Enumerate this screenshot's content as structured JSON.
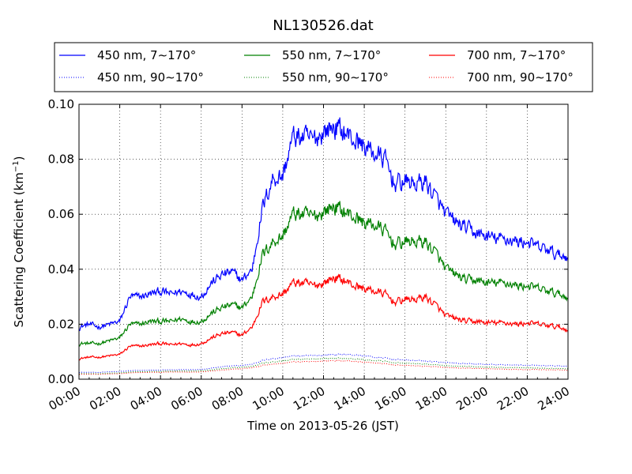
{
  "chart_data": {
    "type": "line",
    "title": "NL130526.dat",
    "xlabel": "Time on 2013-05-26 (JST)",
    "ylabel_main": "Scattering Coefficient (km",
    "ylabel_sup": "−1",
    "ylabel_close": ")",
    "xlim": [
      0,
      24
    ],
    "ylim": [
      0.0,
      0.1
    ],
    "grid": true,
    "legend_position": "top",
    "x_tick_labels": [
      "00:00",
      "02:00",
      "04:00",
      "06:00",
      "08:00",
      "10:00",
      "12:00",
      "14:00",
      "16:00",
      "18:00",
      "20:00",
      "22:00",
      "24:00"
    ],
    "y_tick_labels": [
      "0.00",
      "0.02",
      "0.04",
      "0.06",
      "0.08",
      "0.10"
    ],
    "x_hours": [
      0,
      0.5,
      1,
      1.5,
      2,
      2.5,
      3,
      3.5,
      4,
      4.5,
      5,
      5.5,
      6,
      6.5,
      7,
      7.5,
      8,
      8.5,
      9,
      9.5,
      10,
      10.5,
      11,
      11.5,
      12,
      12.5,
      13,
      13.5,
      14,
      14.5,
      15,
      15.5,
      16,
      16.5,
      17,
      17.5,
      18,
      18.5,
      19,
      19.5,
      20,
      20.5,
      21,
      21.5,
      22,
      22.5,
      23,
      23.5,
      24
    ],
    "series": [
      {
        "name": "450 nm, 7∼170°",
        "color": "#0000ff",
        "style": "solid",
        "values": [
          0.019,
          0.02,
          0.019,
          0.02,
          0.021,
          0.03,
          0.03,
          0.031,
          0.032,
          0.031,
          0.032,
          0.031,
          0.03,
          0.035,
          0.038,
          0.039,
          0.036,
          0.04,
          0.062,
          0.073,
          0.074,
          0.088,
          0.088,
          0.087,
          0.09,
          0.092,
          0.09,
          0.087,
          0.085,
          0.082,
          0.08,
          0.071,
          0.072,
          0.071,
          0.072,
          0.066,
          0.06,
          0.057,
          0.055,
          0.053,
          0.052,
          0.051,
          0.051,
          0.05,
          0.05,
          0.048,
          0.047,
          0.045,
          0.045
        ]
      },
      {
        "name": "450 nm, 90∼170°",
        "color": "#0000ff",
        "style": "dotted",
        "values": [
          0.0025,
          0.0025,
          0.0025,
          0.0027,
          0.0028,
          0.0031,
          0.0032,
          0.0033,
          0.0033,
          0.0034,
          0.0035,
          0.0035,
          0.0036,
          0.004,
          0.0045,
          0.0048,
          0.005,
          0.0055,
          0.0068,
          0.0075,
          0.0078,
          0.0085,
          0.0085,
          0.0086,
          0.0088,
          0.009,
          0.009,
          0.0088,
          0.0085,
          0.008,
          0.0077,
          0.0072,
          0.007,
          0.0068,
          0.0066,
          0.0063,
          0.006,
          0.0058,
          0.0056,
          0.0055,
          0.0054,
          0.0053,
          0.0052,
          0.0052,
          0.0051,
          0.005,
          0.0049,
          0.0048,
          0.0048
        ]
      },
      {
        "name": "550 nm, 7∼170°",
        "color": "#008000",
        "style": "solid",
        "values": [
          0.013,
          0.013,
          0.013,
          0.014,
          0.015,
          0.02,
          0.02,
          0.021,
          0.021,
          0.021,
          0.022,
          0.021,
          0.021,
          0.024,
          0.026,
          0.027,
          0.026,
          0.03,
          0.045,
          0.05,
          0.052,
          0.06,
          0.06,
          0.059,
          0.061,
          0.063,
          0.061,
          0.059,
          0.057,
          0.056,
          0.054,
          0.049,
          0.05,
          0.05,
          0.05,
          0.046,
          0.04,
          0.038,
          0.036,
          0.036,
          0.035,
          0.035,
          0.035,
          0.034,
          0.034,
          0.033,
          0.032,
          0.031,
          0.03
        ]
      },
      {
        "name": "550 nm, 90∼170°",
        "color": "#008000",
        "style": "dotted",
        "values": [
          0.002,
          0.002,
          0.002,
          0.0022,
          0.0023,
          0.0026,
          0.0027,
          0.0028,
          0.0028,
          0.0029,
          0.003,
          0.003,
          0.0031,
          0.0034,
          0.0038,
          0.0041,
          0.0043,
          0.0047,
          0.0058,
          0.0063,
          0.0066,
          0.0072,
          0.0072,
          0.0073,
          0.0075,
          0.0077,
          0.0076,
          0.0074,
          0.0071,
          0.0068,
          0.0065,
          0.006,
          0.0058,
          0.0057,
          0.0055,
          0.0052,
          0.0049,
          0.0047,
          0.0046,
          0.0045,
          0.0044,
          0.0043,
          0.0042,
          0.0042,
          0.0041,
          0.004,
          0.0039,
          0.0039,
          0.0038
        ]
      },
      {
        "name": "700 nm, 7∼170°",
        "color": "#ff0000",
        "style": "solid",
        "values": [
          0.0075,
          0.008,
          0.008,
          0.0085,
          0.009,
          0.012,
          0.012,
          0.0125,
          0.013,
          0.0125,
          0.013,
          0.0125,
          0.013,
          0.015,
          0.0165,
          0.017,
          0.016,
          0.019,
          0.028,
          0.03,
          0.031,
          0.035,
          0.035,
          0.034,
          0.035,
          0.037,
          0.036,
          0.034,
          0.033,
          0.032,
          0.031,
          0.028,
          0.029,
          0.029,
          0.03,
          0.027,
          0.023,
          0.022,
          0.021,
          0.021,
          0.0205,
          0.0205,
          0.0205,
          0.02,
          0.0205,
          0.02,
          0.0195,
          0.019,
          0.018
        ]
      },
      {
        "name": "700 nm, 90∼170°",
        "color": "#ff0000",
        "style": "dotted",
        "values": [
          0.0018,
          0.0018,
          0.0018,
          0.0019,
          0.002,
          0.0023,
          0.0024,
          0.0025,
          0.0025,
          0.0026,
          0.0026,
          0.0026,
          0.0027,
          0.003,
          0.0033,
          0.0036,
          0.0038,
          0.0042,
          0.005,
          0.0055,
          0.0058,
          0.0063,
          0.0063,
          0.0064,
          0.0066,
          0.0068,
          0.0067,
          0.0065,
          0.0062,
          0.0059,
          0.0056,
          0.0052,
          0.005,
          0.0049,
          0.0047,
          0.0045,
          0.0042,
          0.0041,
          0.004,
          0.0039,
          0.0038,
          0.0037,
          0.0036,
          0.0036,
          0.0035,
          0.0035,
          0.0034,
          0.0034,
          0.0033
        ]
      }
    ]
  }
}
